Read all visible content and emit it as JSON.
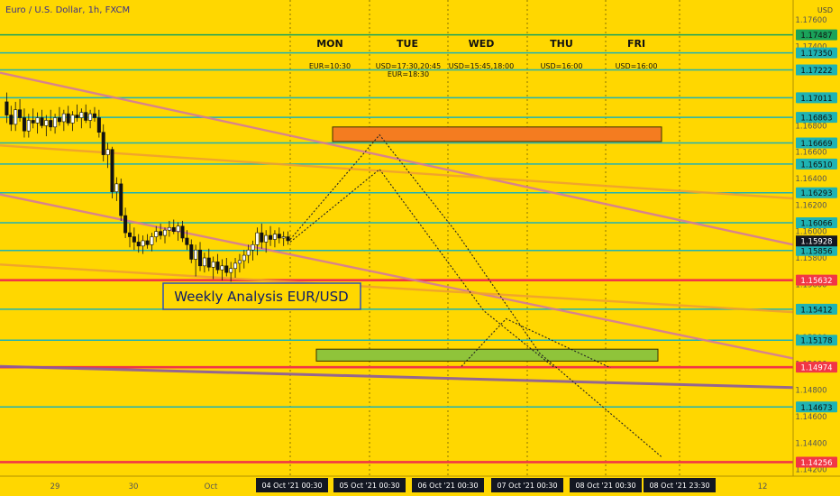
{
  "chart_data": {
    "type": "candlestick",
    "symbol_title": "Euro / U.S. Dollar, 1h, FXCM",
    "currency_label": "USD",
    "ylim": [
      1.1415,
      1.1775
    ],
    "price_ticks": [
      "1.17600",
      "1.17400",
      "1.17200",
      "1.17000",
      "1.16800",
      "1.16600",
      "1.16400",
      "1.16200",
      "1.16000",
      "1.15800",
      "1.15600",
      "1.15400",
      "1.15200",
      "1.15000",
      "1.14800",
      "1.14600",
      "1.14400",
      "1.14200"
    ],
    "current_price": "1.15928",
    "horizontal_levels": [
      {
        "label": "1.17487",
        "value": 1.17487,
        "line_color": "#1aa35a",
        "tag_color": "#1aa35a"
      },
      {
        "label": "1.17350",
        "value": 1.1735,
        "line_color": "#1fb3b3",
        "tag_color": "#1fb3b3"
      },
      {
        "label": "1.17222",
        "value": 1.17222,
        "line_color": "#1fb3b3",
        "tag_color": "#1fb3b3"
      },
      {
        "label": "1.17011",
        "value": 1.17011,
        "line_color": "#1fb3b3",
        "tag_color": "#1fb3b3"
      },
      {
        "label": "1.16863",
        "value": 1.16863,
        "line_color": "#1fb3b3",
        "tag_color": "#1fb3b3"
      },
      {
        "label": "1.16669",
        "value": 1.16669,
        "line_color": "#1fb3b3",
        "tag_color": "#1fb3b3"
      },
      {
        "label": "1.16510",
        "value": 1.1651,
        "line_color": "#1fb3b3",
        "tag_color": "#1fb3b3"
      },
      {
        "label": "1.16293",
        "value": 1.16293,
        "line_color": "#1fb3b3",
        "tag_color": "#1fb3b3"
      },
      {
        "label": "1.16066",
        "value": 1.16066,
        "line_color": "#1fb3b3",
        "tag_color": "#1fb3b3"
      },
      {
        "label": "1.15856",
        "value": 1.15856,
        "line_color": "#1fb3b3",
        "tag_color": "#1fb3b3"
      },
      {
        "label": "1.15632",
        "value": 1.15632,
        "line_color": "#f23645",
        "tag_color": "#f23645"
      },
      {
        "label": "1.15412",
        "value": 1.15412,
        "line_color": "#1fb3b3",
        "tag_color": "#1fb3b3"
      },
      {
        "label": "1.15178",
        "value": 1.15178,
        "line_color": "#1fb3b3",
        "tag_color": "#1fb3b3"
      },
      {
        "label": "1.14974",
        "value": 1.14974,
        "line_color": "#f23645",
        "tag_color": "#f23645"
      },
      {
        "label": "1.14673",
        "value": 1.14673,
        "line_color": "#1fb3b3",
        "tag_color": "#1fb3b3"
      },
      {
        "label": "1.14256",
        "value": 1.14256,
        "line_color": "#f23645",
        "tag_color": "#f23645"
      }
    ],
    "days": [
      "MON",
      "TUE",
      "WED",
      "THU",
      "FRI"
    ],
    "events": [
      {
        "lines": [
          "EUR=10:30"
        ]
      },
      {
        "lines": [
          "USD=17:30,20:45",
          "EUR=18:30"
        ]
      },
      {
        "lines": [
          "USD=15:45,18:00"
        ]
      },
      {
        "lines": [
          "USD=16:00"
        ]
      },
      {
        "lines": [
          "USD=16:00"
        ]
      }
    ],
    "x_axis_labels": [
      "29",
      "30",
      "Oct",
      "12"
    ],
    "x_axis_date_boxes": [
      "04 Oct '21   00:30",
      "05 Oct '21   00:30",
      "06 Oct '21   00:30",
      "07 Oct '21   00:30",
      "08 Oct '21   00:30",
      "08 Oct '21   23:30"
    ],
    "annotation": "Weekly Analysis EUR/USD",
    "zones": [
      {
        "name": "resistance-zone",
        "low": 1.1668,
        "high": 1.1679,
        "color": "#f47c20"
      },
      {
        "name": "support-zone",
        "low": 1.1502,
        "high": 1.1511,
        "color": "#8fc43a"
      }
    ],
    "candles": [
      [
        1.1698,
        1.1705,
        1.1682,
        1.1688
      ],
      [
        1.1688,
        1.1695,
        1.1676,
        1.1681
      ],
      [
        1.1681,
        1.1698,
        1.1676,
        1.1692
      ],
      [
        1.1692,
        1.17,
        1.1683,
        1.1686
      ],
      [
        1.1686,
        1.1693,
        1.1671,
        1.1676
      ],
      [
        1.1676,
        1.1689,
        1.1671,
        1.1684
      ],
      [
        1.1684,
        1.1693,
        1.1678,
        1.1682
      ],
      [
        1.1682,
        1.169,
        1.1674,
        1.1686
      ],
      [
        1.1686,
        1.1692,
        1.1678,
        1.168
      ],
      [
        1.168,
        1.1688,
        1.1672,
        1.1684
      ],
      [
        1.1684,
        1.1692,
        1.1676,
        1.1679
      ],
      [
        1.1679,
        1.1689,
        1.1674,
        1.1686
      ],
      [
        1.1686,
        1.1694,
        1.168,
        1.1683
      ],
      [
        1.1683,
        1.1692,
        1.1676,
        1.1689
      ],
      [
        1.1689,
        1.1695,
        1.168,
        1.1682
      ],
      [
        1.1682,
        1.1691,
        1.1676,
        1.1688
      ],
      [
        1.1688,
        1.1696,
        1.1683,
        1.1686
      ],
      [
        1.1686,
        1.1693,
        1.1678,
        1.169
      ],
      [
        1.169,
        1.1696,
        1.1682,
        1.1684
      ],
      [
        1.1684,
        1.1692,
        1.1678,
        1.1689
      ],
      [
        1.1689,
        1.1694,
        1.1683,
        1.1686
      ],
      [
        1.1686,
        1.1692,
        1.1671,
        1.1675
      ],
      [
        1.1675,
        1.1681,
        1.1653,
        1.1658
      ],
      [
        1.1658,
        1.1667,
        1.1648,
        1.1662
      ],
      [
        1.1662,
        1.1664,
        1.1625,
        1.163
      ],
      [
        1.163,
        1.1641,
        1.1623,
        1.1636
      ],
      [
        1.1636,
        1.164,
        1.1608,
        1.1612
      ],
      [
        1.1612,
        1.1618,
        1.1595,
        1.1599
      ],
      [
        1.1599,
        1.1606,
        1.1588,
        1.1596
      ],
      [
        1.1596,
        1.1603,
        1.1586,
        1.1592
      ],
      [
        1.1592,
        1.1598,
        1.1584,
        1.1589
      ],
      [
        1.1589,
        1.1597,
        1.1583,
        1.1593
      ],
      [
        1.1593,
        1.1598,
        1.1587,
        1.159
      ],
      [
        1.159,
        1.1599,
        1.1585,
        1.1596
      ],
      [
        1.1596,
        1.1604,
        1.1592,
        1.16
      ],
      [
        1.16,
        1.1606,
        1.1594,
        1.1597
      ],
      [
        1.1597,
        1.1603,
        1.1591,
        1.1601
      ],
      [
        1.1601,
        1.1608,
        1.1596,
        1.1603
      ],
      [
        1.1603,
        1.1609,
        1.1598,
        1.16
      ],
      [
        1.16,
        1.1607,
        1.1593,
        1.1604
      ],
      [
        1.1604,
        1.1608,
        1.1592,
        1.1595
      ],
      [
        1.1595,
        1.1601,
        1.1586,
        1.159
      ],
      [
        1.159,
        1.1594,
        1.1576,
        1.1579
      ],
      [
        1.1579,
        1.159,
        1.1566,
        1.1586
      ],
      [
        1.1586,
        1.1592,
        1.157,
        1.1574
      ],
      [
        1.1574,
        1.1584,
        1.1569,
        1.158
      ],
      [
        1.158,
        1.1587,
        1.157,
        1.1573
      ],
      [
        1.1573,
        1.1581,
        1.1564,
        1.1577
      ],
      [
        1.1577,
        1.1583,
        1.1568,
        1.1571
      ],
      [
        1.1571,
        1.1579,
        1.1563,
        1.1574
      ],
      [
        1.1574,
        1.158,
        1.1566,
        1.1569
      ],
      [
        1.1569,
        1.1577,
        1.1562,
        1.1572
      ],
      [
        1.1572,
        1.158,
        1.1565,
        1.1576
      ],
      [
        1.1576,
        1.1583,
        1.1569,
        1.1578
      ],
      [
        1.1578,
        1.1586,
        1.1572,
        1.1582
      ],
      [
        1.1582,
        1.159,
        1.1576,
        1.1586
      ],
      [
        1.1586,
        1.1593,
        1.1578,
        1.159
      ],
      [
        1.159,
        1.1603,
        1.1582,
        1.1599
      ],
      [
        1.1599,
        1.1606,
        1.1587,
        1.1592
      ],
      [
        1.1592,
        1.1601,
        1.1584,
        1.1597
      ],
      [
        1.1597,
        1.1604,
        1.1589,
        1.1594
      ],
      [
        1.1594,
        1.1601,
        1.1588,
        1.1598
      ],
      [
        1.1598,
        1.1603,
        1.1591,
        1.1595
      ],
      [
        1.1595,
        1.16,
        1.1589,
        1.1596
      ],
      [
        1.1596,
        1.16,
        1.159,
        1.1593
      ]
    ],
    "projection_paths": [
      [
        [
          0,
          1.1594
        ],
        [
          0.24,
          1.1673
        ],
        [
          0.45,
          1.1598
        ],
        [
          0.67,
          1.1508
        ],
        [
          1,
          1.1429
        ]
      ],
      [
        [
          0,
          1.1592
        ],
        [
          0.24,
          1.1647
        ],
        [
          0.52,
          1.154
        ],
        [
          0.71,
          1.1497
        ]
      ],
      [
        [
          0.46,
          1.1498
        ],
        [
          0.58,
          1.1534
        ],
        [
          0.86,
          1.1497
        ]
      ]
    ],
    "trend_lines": [
      {
        "color": "#d57a9a",
        "from": 1.172,
        "to": 1.159
      },
      {
        "color": "#d57a9a",
        "from": 1.1628,
        "to": 1.1504
      },
      {
        "color": "#f0a030",
        "from": 1.1665,
        "to": 1.1625
      },
      {
        "color": "#f0a030",
        "from": 1.1575,
        "to": 1.1539
      },
      {
        "color": "#8a5aa0",
        "from": 1.1498,
        "to": 1.1482
      }
    ]
  }
}
